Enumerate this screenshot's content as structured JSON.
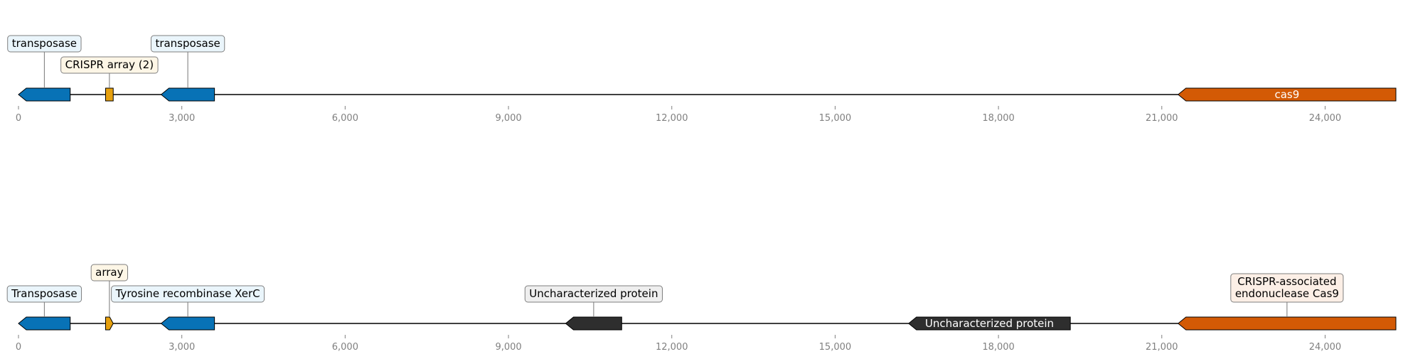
{
  "colors": {
    "blue": "#0872b6",
    "gold": "#e6a00e",
    "orange": "#d35a05",
    "dark": "#2e2e2e",
    "blue_box": "#eaf5fb",
    "gold_box": "#fdf6e6",
    "orange_box": "#fcefe6",
    "dark_box": "#eeeeee",
    "axis": "#808080"
  },
  "axis": {
    "min": 0,
    "max": 25300,
    "ticks": [
      "0",
      "3,000",
      "6,000",
      "9,000",
      "12,000",
      "15,000",
      "18,000",
      "21,000",
      "24,000"
    ]
  },
  "tracks": [
    {
      "features": [
        {
          "name": "transposase",
          "start": 0,
          "end": 950,
          "strand": -1,
          "color": "blue",
          "label_mode": "callout",
          "label_level": 2
        },
        {
          "name": "CRISPR array (2)",
          "start": 1600,
          "end": 1740,
          "strand": 0,
          "color": "gold",
          "label_mode": "callout",
          "label_level": 1
        },
        {
          "name": "transposase",
          "start": 2620,
          "end": 3600,
          "strand": -1,
          "color": "blue",
          "label_mode": "callout",
          "label_level": 2
        },
        {
          "name": "cas9",
          "start": 21300,
          "end": 25300,
          "strand": -1,
          "color": "orange",
          "label_mode": "inline"
        }
      ]
    },
    {
      "features": [
        {
          "name": "Transposase",
          "start": 0,
          "end": 950,
          "strand": -1,
          "color": "blue",
          "label_mode": "callout",
          "label_level": 1
        },
        {
          "name": "array",
          "start": 1600,
          "end": 1740,
          "strand": 1,
          "color": "gold",
          "label_mode": "callout",
          "label_level": 2
        },
        {
          "name": "Tyrosine recombinase XerC",
          "start": 2620,
          "end": 3600,
          "strand": -1,
          "color": "blue",
          "label_mode": "callout",
          "label_level": 1
        },
        {
          "name": "Uncharacterized protein",
          "start": 10050,
          "end": 11080,
          "strand": -1,
          "color": "dark",
          "label_mode": "callout",
          "label_level": 1
        },
        {
          "name": "Uncharacterized protein",
          "start": 16350,
          "end": 19320,
          "strand": -1,
          "color": "dark",
          "label_mode": "inline"
        },
        {
          "name": "CRISPR-associated\nendonuclease Cas9",
          "start": 21300,
          "end": 25300,
          "strand": -1,
          "color": "orange",
          "label_mode": "callout",
          "label_level": 1
        }
      ]
    }
  ]
}
